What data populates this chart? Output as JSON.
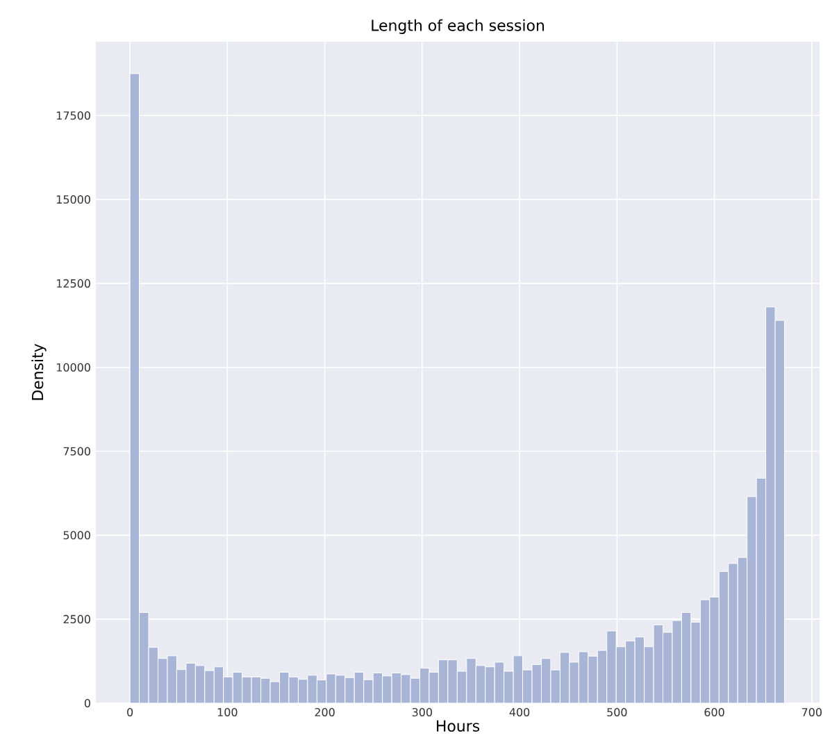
{
  "chart_data": {
    "type": "histogram",
    "title": "Length of each session",
    "xlabel": "Hours",
    "ylabel": "Density",
    "bins": [
      0,
      9.6,
      19.2,
      28.8,
      38.4,
      48,
      57.6,
      67.2,
      76.8,
      86.4,
      96,
      105.6,
      115.2,
      124.8,
      134.4,
      144,
      153.6,
      163.2,
      172.8,
      182.4,
      192,
      201.6,
      211.2,
      220.8,
      230.4,
      240,
      249.6,
      259.2,
      268.8,
      278.4,
      288,
      297.6,
      307.2,
      316.8,
      326.4,
      336,
      345.6,
      355.2,
      364.8,
      374.4,
      384,
      393.6,
      403.2,
      412.8,
      422.4,
      432,
      441.6,
      451.2,
      460.8,
      470.4,
      480,
      489.6,
      499.2,
      508.8,
      518.4,
      528,
      537.6,
      547.2,
      556.8,
      566.4,
      576,
      585.6,
      595.2,
      604.8,
      614.4,
      624,
      633.6,
      643.2,
      652.8,
      662.4,
      672
    ],
    "values": [
      18750,
      2700,
      1660,
      1330,
      1410,
      1000,
      1190,
      1120,
      970,
      1080,
      780,
      920,
      780,
      780,
      740,
      640,
      920,
      780,
      710,
      830,
      690,
      870,
      830,
      760,
      920,
      700,
      900,
      810,
      900,
      850,
      740,
      1040,
      920,
      1290,
      1290,
      950,
      1330,
      1120,
      1080,
      1220,
      950,
      1410,
      990,
      1150,
      1330,
      990,
      1510,
      1220,
      1530,
      1400,
      1570,
      2150,
      1680,
      1850,
      1970,
      1680,
      2330,
      2110,
      2460,
      2700,
      2410,
      3080,
      3160,
      3920,
      4160,
      4340,
      6150,
      6700,
      11800,
      11400
    ],
    "color": "#a8b5d6",
    "xlim": [
      -35,
      708
    ],
    "ylim": [
      0,
      19700
    ],
    "xticks": [
      0,
      100,
      200,
      300,
      400,
      500,
      600,
      700
    ],
    "yticks": [
      0,
      2500,
      5000,
      7500,
      10000,
      12500,
      15000,
      17500
    ],
    "grid": true
  }
}
